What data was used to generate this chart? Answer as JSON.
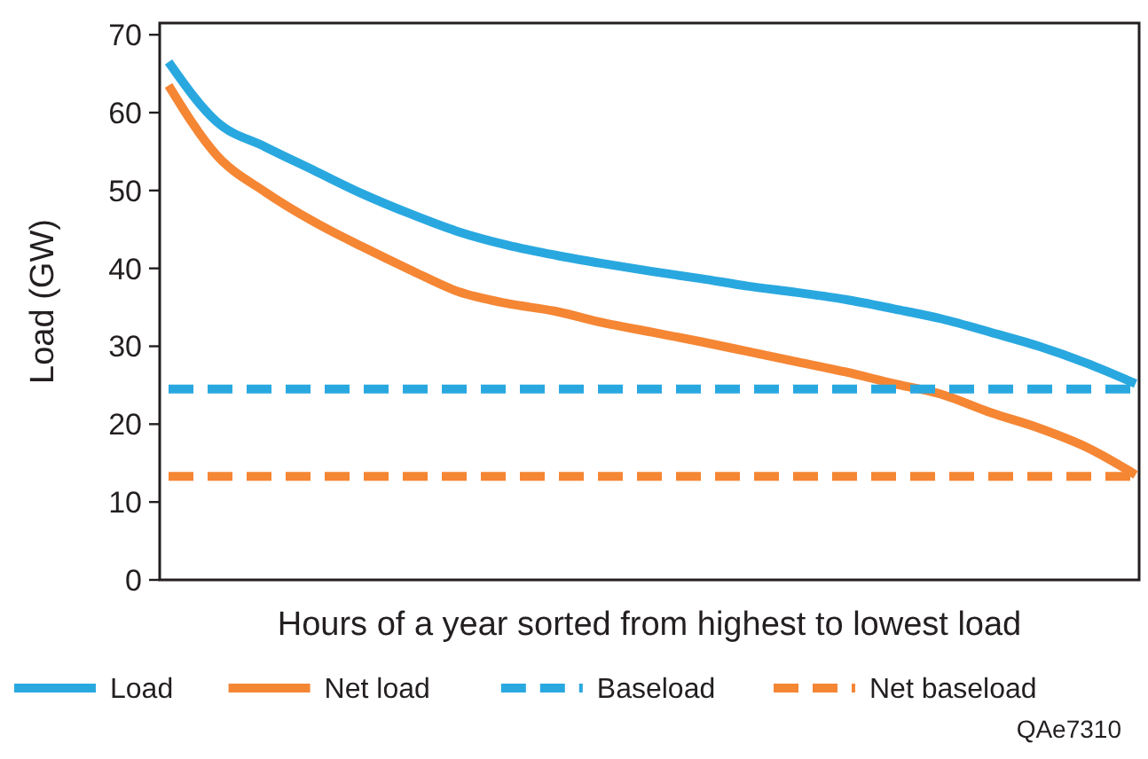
{
  "chart_data": {
    "type": "line",
    "xlabel": "Hours of a year sorted from highest to lowest load",
    "ylabel": "Load (GW)",
    "categories": [
      null,
      null,
      null,
      null,
      null,
      null,
      null,
      null,
      null,
      null,
      null,
      null,
      null,
      null,
      null,
      null,
      null,
      null,
      null,
      null,
      null
    ],
    "series": [
      {
        "name": "Load",
        "color": "#29a8e0",
        "line_style": "solid",
        "values": [
          66.5,
          58.8,
          55.6,
          52.6,
          49.6,
          47,
          44.7,
          43,
          41.7,
          40.6,
          39.6,
          38.7,
          37.7,
          36.9,
          36,
          34.8,
          33.5,
          31.8,
          30,
          27.8,
          25.2
        ]
      },
      {
        "name": "Net load",
        "color": "#f58634",
        "line_style": "solid",
        "values": [
          63.5,
          54.5,
          49.8,
          46,
          42.8,
          39.8,
          37,
          35.5,
          34.5,
          33,
          31.8,
          30.6,
          29.3,
          28,
          26.7,
          25.2,
          23.8,
          21.5,
          19.5,
          17,
          13.5
        ]
      },
      {
        "name": "Baseload",
        "color": "#29a8e0",
        "line_style": "dashed",
        "values": [
          24.5,
          24.5,
          24.5,
          24.5,
          24.5,
          24.5,
          24.5,
          24.5,
          24.5,
          24.5,
          24.5,
          24.5,
          24.5,
          24.5,
          24.5,
          24.5,
          24.5,
          24.5,
          24.5,
          24.5,
          24.5
        ]
      },
      {
        "name": "Net baseload",
        "color": "#f58634",
        "line_style": "dashed",
        "values": [
          13.3,
          13.3,
          13.3,
          13.3,
          13.3,
          13.3,
          13.3,
          13.3,
          13.3,
          13.3,
          13.3,
          13.3,
          13.3,
          13.3,
          13.3,
          13.3,
          13.3,
          13.3,
          13.3,
          13.3,
          13.3
        ]
      }
    ],
    "ylim": [
      0,
      71.5
    ],
    "yticks": [
      0,
      10,
      20,
      30,
      40,
      50,
      60,
      70
    ],
    "grid": false,
    "legend": "bottom",
    "marker": "none",
    "annotations": [
      "QAe7310"
    ]
  }
}
